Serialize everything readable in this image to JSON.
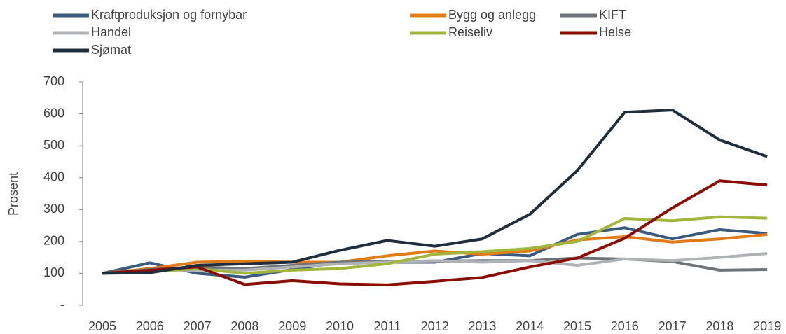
{
  "chart_data": {
    "type": "line",
    "y_label": "Prosent",
    "categories": [
      "2005",
      "2006",
      "2007",
      "2008",
      "2009",
      "2010",
      "2011",
      "2012",
      "2013",
      "2014",
      "2015",
      "2016",
      "2017",
      "2018",
      "2019"
    ],
    "series": [
      {
        "name": "Kraftproduksjon og fornybar",
        "color": "#3a5a80",
        "values": [
          100,
          133,
          100,
          88,
          112,
          135,
          135,
          135,
          162,
          155,
          222,
          243,
          208,
          237,
          225
        ]
      },
      {
        "name": "Bygg og anlegg",
        "color": "#e07b17",
        "values": [
          100,
          115,
          135,
          138,
          135,
          135,
          155,
          170,
          160,
          170,
          205,
          215,
          198,
          208,
          222
        ]
      },
      {
        "name": "KIFT",
        "color": "#6d7378",
        "values": [
          100,
          112,
          120,
          115,
          125,
          135,
          138,
          138,
          140,
          140,
          148,
          145,
          137,
          110,
          112
        ]
      },
      {
        "name": "Handel",
        "color": "#b0b3b5",
        "values": [
          100,
          110,
          110,
          110,
          120,
          130,
          135,
          140,
          135,
          140,
          125,
          145,
          140,
          150,
          162
        ]
      },
      {
        "name": "Reiseliv",
        "color": "#a2b63c",
        "values": [
          100,
          105,
          115,
          100,
          110,
          115,
          130,
          160,
          168,
          178,
          200,
          272,
          265,
          277,
          273
        ]
      },
      {
        "name": "Helse",
        "color": "#8b0e04",
        "values": [
          100,
          110,
          120,
          65,
          77,
          67,
          64,
          75,
          87,
          120,
          148,
          210,
          305,
          390,
          377
        ]
      },
      {
        "name": "Sjømat",
        "color": "#1f2d3d",
        "values": [
          100,
          102,
          125,
          130,
          135,
          172,
          203,
          185,
          208,
          285,
          422,
          605,
          612,
          518,
          466
        ]
      }
    ],
    "ylim": [
      0,
      700
    ],
    "yticks": [
      {
        "value": 0,
        "label": "-"
      },
      100,
      200,
      300,
      400,
      500,
      600,
      700
    ],
    "legend": "top"
  }
}
